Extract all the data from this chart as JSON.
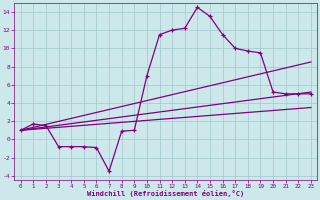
{
  "x_hours": [
    0,
    1,
    2,
    3,
    4,
    5,
    6,
    7,
    8,
    9,
    10,
    11,
    12,
    13,
    14,
    15,
    16,
    17,
    18,
    19,
    20,
    21,
    22,
    23
  ],
  "temp_curve": [
    1.0,
    1.7,
    1.5,
    -0.8,
    -0.8,
    -0.8,
    -0.9,
    -3.5,
    0.9,
    1.0,
    7.0,
    11.5,
    12.0,
    12.2,
    14.5,
    13.5,
    11.5,
    10.0,
    9.7,
    9.5,
    5.2,
    5.0,
    5.0,
    5.0
  ],
  "line1_x": [
    0,
    23
  ],
  "line1_y": [
    1.0,
    8.5
  ],
  "line2_x": [
    0,
    23
  ],
  "line2_y": [
    1.0,
    5.2
  ],
  "line3_x": [
    0,
    23
  ],
  "line3_y": [
    1.0,
    3.5
  ],
  "xlim": [
    -0.5,
    23.5
  ],
  "ylim": [
    -4.5,
    15.0
  ],
  "yticks": [
    -4,
    -2,
    0,
    2,
    4,
    6,
    8,
    10,
    12,
    14
  ],
  "xticks": [
    0,
    1,
    2,
    3,
    4,
    5,
    6,
    7,
    8,
    9,
    10,
    11,
    12,
    13,
    14,
    15,
    16,
    17,
    18,
    19,
    20,
    21,
    22,
    23
  ],
  "xlabel": "Windchill (Refroidissement éolien,°C)",
  "line_color": "#800080",
  "bg_color": "#cce8ea",
  "grid_color": "#a0c8cc",
  "tick_color": "#800080",
  "label_color": "#800080",
  "marker": "+"
}
